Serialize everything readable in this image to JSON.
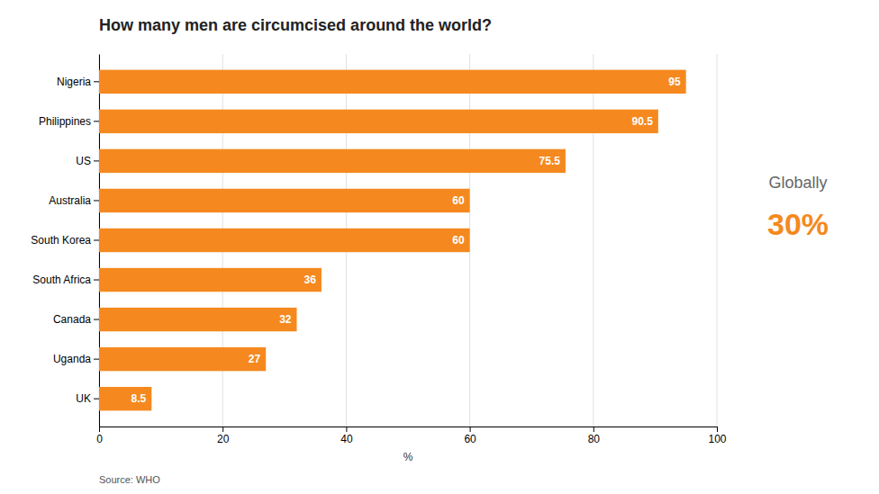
{
  "chart_data": {
    "type": "bar",
    "orientation": "horizontal",
    "title": "How many men are circumcised around the world?",
    "xlabel": "%",
    "categories": [
      "Nigeria",
      "Philippines",
      "US",
      "Australia",
      "South Korea",
      "South Africa",
      "Canada",
      "Uganda",
      "UK"
    ],
    "values": [
      95,
      90.5,
      75.5,
      60,
      60,
      36,
      32,
      27,
      8.5
    ],
    "color": "#F5891F",
    "xlim": [
      0,
      100
    ],
    "xticks": [
      0,
      20,
      40,
      60,
      80,
      100
    ],
    "grid": true,
    "data_labels": true,
    "annotations": [
      "Globally",
      "30%",
      "Source: WHO"
    ]
  }
}
